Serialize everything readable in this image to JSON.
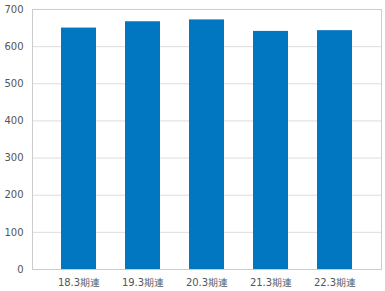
{
  "chart_data": {
    "type": "bar",
    "categories": [
      "18.3期連",
      "19.3期連",
      "20.3期連",
      "21.3期連",
      "22.3期連"
    ],
    "values": [
      650,
      667,
      672,
      641,
      643
    ],
    "color": "#0077c0",
    "ylim": [
      0,
      700
    ],
    "yticks": [
      0,
      100,
      200,
      300,
      400,
      500,
      600,
      700
    ],
    "grid": true
  }
}
